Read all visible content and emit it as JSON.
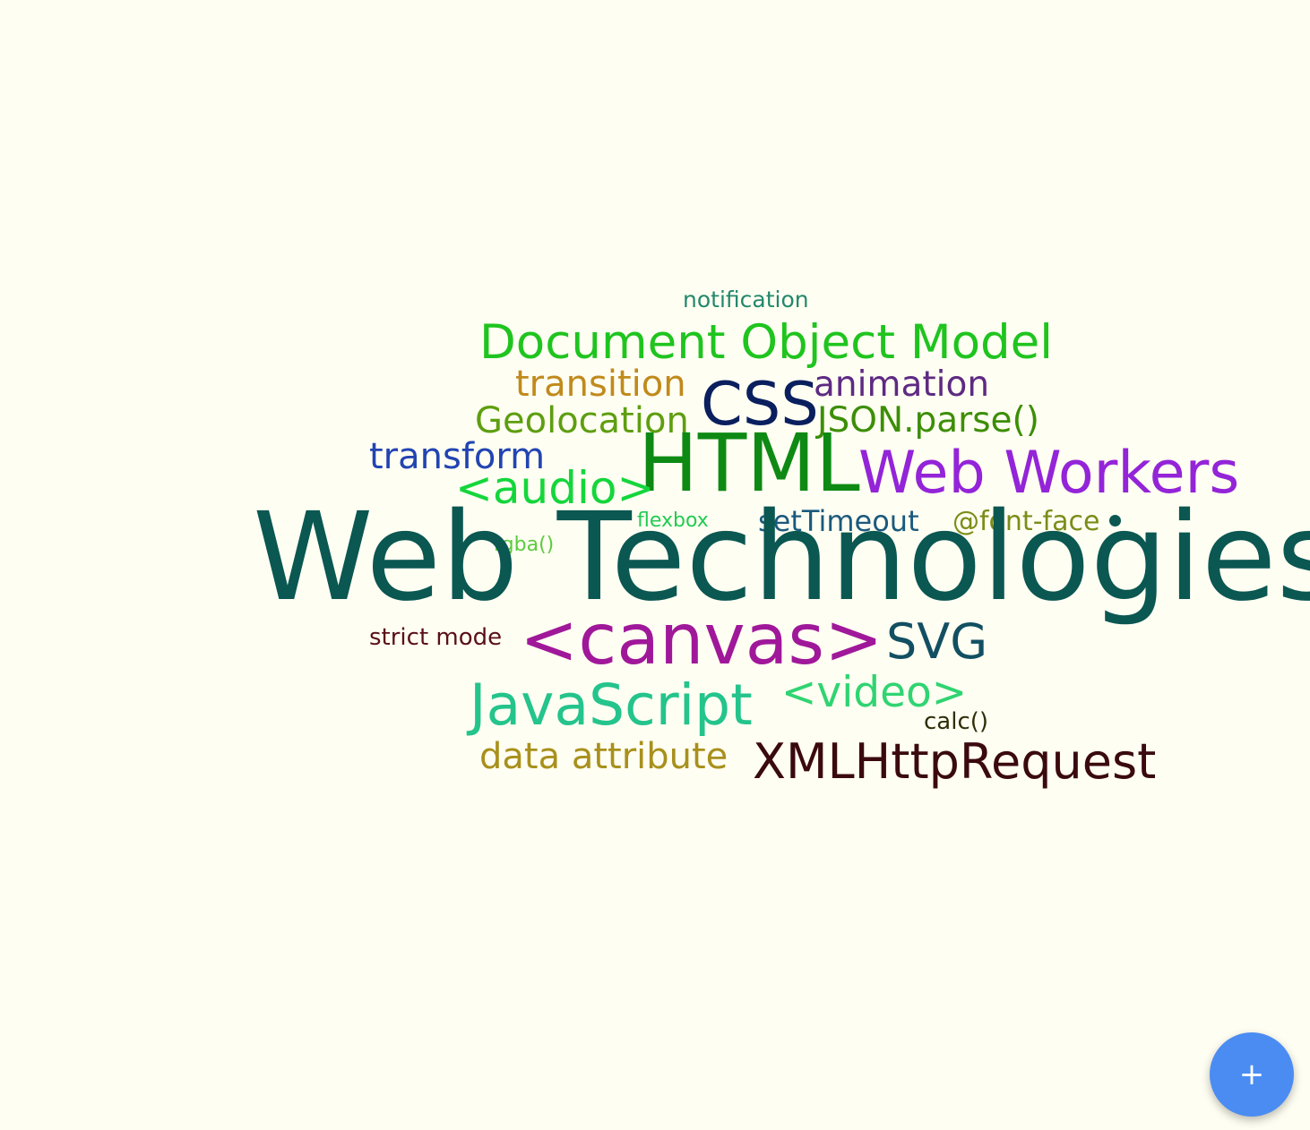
{
  "words": [
    {
      "text": "notification",
      "color": "#23886c"
    },
    {
      "text": "Document Object Model",
      "color": "#1fc41f"
    },
    {
      "text": "transition",
      "color": "#c08a1c"
    },
    {
      "text": "animation",
      "color": "#5e2a82"
    },
    {
      "text": "CSS",
      "color": "#0a1f5e"
    },
    {
      "text": "Geolocation",
      "color": "#5e9e10"
    },
    {
      "text": "JSON.parse()",
      "color": "#3c8e06"
    },
    {
      "text": "transform",
      "color": "#2244b2"
    },
    {
      "text": "HTML",
      "color": "#0e8a14"
    },
    {
      "text": "Web Workers",
      "color": "#9324d8"
    },
    {
      "text": "<audio>",
      "color": "#14d63c"
    },
    {
      "text": "flexbox",
      "color": "#22cc52"
    },
    {
      "text": "setTimeout",
      "color": "#1b5a7e"
    },
    {
      "text": "@font-face",
      "color": "#7c8c18"
    },
    {
      "text": "rgba()",
      "color": "#5acc3e"
    },
    {
      "text": "Web Technologies",
      "color": "#0b5752"
    },
    {
      "text": "strict mode",
      "color": "#5a1018"
    },
    {
      "text": "<canvas>",
      "color": "#a0189a"
    },
    {
      "text": "SVG",
      "color": "#124f62"
    },
    {
      "text": "JavaScript",
      "color": "#24c48c"
    },
    {
      "text": "<video>",
      "color": "#30d472"
    },
    {
      "text": "calc()",
      "color": "#2e2e08"
    },
    {
      "text": "data attribute",
      "color": "#a8901c"
    },
    {
      "text": "XMLHttpRequest",
      "color": "#3a0a0e"
    }
  ],
  "fab": {
    "icon": "plus-icon",
    "label": "+",
    "color": "#4a8cf2"
  }
}
